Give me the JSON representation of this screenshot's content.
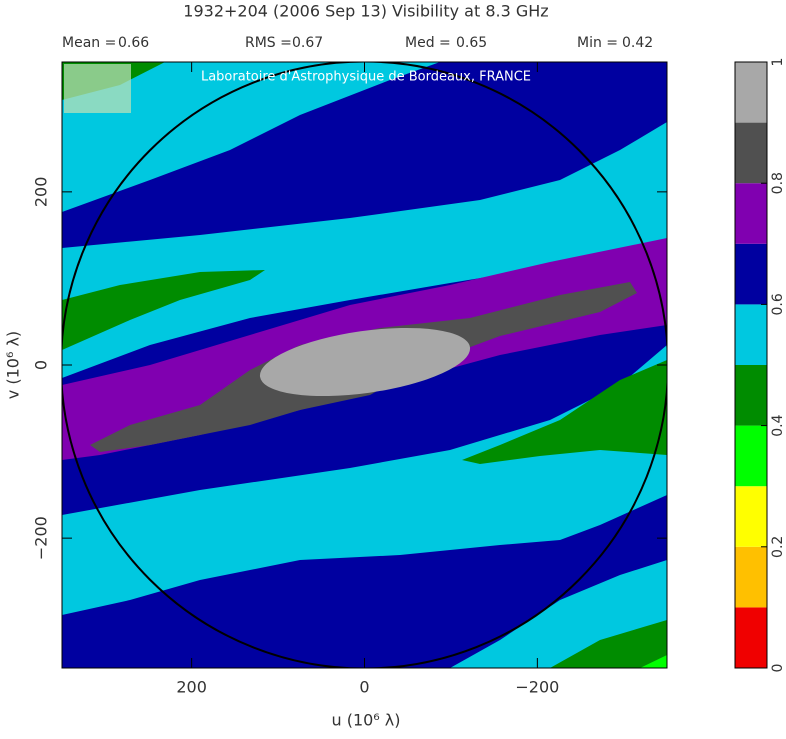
{
  "chart_data": {
    "type": "contour",
    "title": "1932+204  (2006 Sep 13)   Visibility at  8.3 GHz",
    "stats": [
      {
        "label": "Mean =",
        "value": 0.66
      },
      {
        "label": "RMS =",
        "value": 0.67
      },
      {
        "label": "Med =",
        "value": 0.65
      },
      {
        "label": "Min =",
        "value": 0.42
      }
    ],
    "watermark": "Laboratoire d'Astrophysique de Bordeaux, FRANCE",
    "x_label": "u  (10⁶ λ)",
    "y_label": "v  (10⁶ λ)",
    "xlim": [
      350,
      -350
    ],
    "ylim": [
      -350,
      350
    ],
    "xticks": [
      {
        "value": 200,
        "label": "200"
      },
      0,
      {
        "value": -200,
        "label": "−200"
      }
    ],
    "yticks": [
      {
        "value": -200,
        "label": "−200"
      },
      0,
      200
    ],
    "colorbar": {
      "lim": [
        0,
        1
      ],
      "ticks": [
        0,
        0.2,
        0.4,
        0.6,
        0.8,
        1
      ],
      "bands": [
        {
          "from": 0,
          "to": 0.1,
          "color": "#f00000"
        },
        {
          "from": 0.1,
          "to": 0.2,
          "color": "#ffc000"
        },
        {
          "from": 0.2,
          "to": 0.3,
          "color": "#ffff00"
        },
        {
          "from": 0.3,
          "to": 0.4,
          "color": "#00ff00"
        },
        {
          "from": 0.4,
          "to": 0.5,
          "color": "#008c00"
        },
        {
          "from": 0.5,
          "to": 0.6,
          "color": "#00c8e0"
        },
        {
          "from": 0.6,
          "to": 0.7,
          "color": "#0000a0"
        },
        {
          "from": 0.7,
          "to": 0.8,
          "color": "#8000b0"
        },
        {
          "from": 0.8,
          "to": 0.9,
          "color": "#505050"
        },
        {
          "from": 0.9,
          "to": 1,
          "color": "#a8a8a8"
        }
      ]
    }
  }
}
